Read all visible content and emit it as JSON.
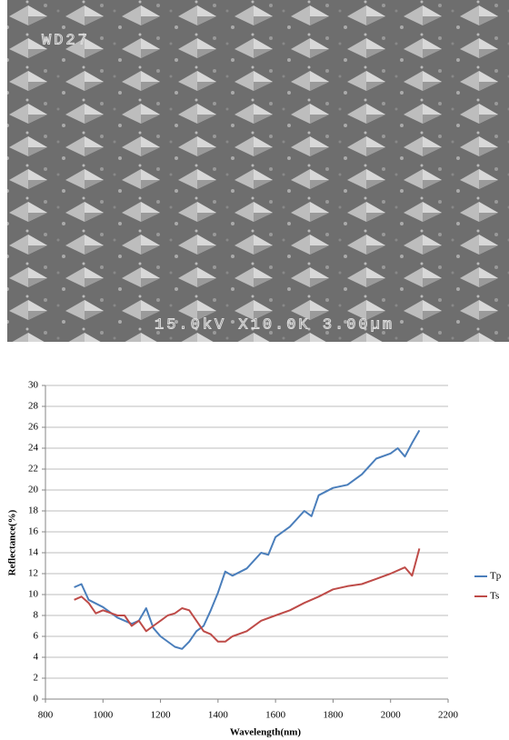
{
  "image": {
    "labels": [
      "WD27",
      "15.0kV X10.0K 3.00µm"
    ]
  },
  "chart_data": {
    "type": "line",
    "x_label": "Wavelength(nm)",
    "y_label": "Reflectance(%)",
    "xlim": [
      800,
      2200
    ],
    "xticks": [
      800,
      1000,
      1200,
      1400,
      1600,
      1800,
      2000,
      2200
    ],
    "ylim": [
      0,
      30
    ],
    "yticks": [
      0,
      2,
      4,
      6,
      8,
      10,
      12,
      14,
      16,
      18,
      20,
      22,
      24,
      26,
      28,
      30
    ],
    "grid": true,
    "legend": "right",
    "series": [
      {
        "name": "Tp",
        "color": "#4a7ebb",
        "x": [
          900,
          925,
          950,
          1000,
          1050,
          1100,
          1125,
          1150,
          1175,
          1200,
          1250,
          1275,
          1300,
          1325,
          1350,
          1375,
          1400,
          1425,
          1450,
          1500,
          1550,
          1575,
          1600,
          1650,
          1700,
          1725,
          1750,
          1800,
          1850,
          1900,
          1950,
          2000,
          2025,
          2050,
          2075,
          2100
        ],
        "values": [
          10.7,
          11.0,
          9.5,
          8.8,
          7.8,
          7.2,
          7.5,
          8.7,
          6.8,
          6.0,
          5.0,
          4.8,
          5.5,
          6.5,
          7.0,
          8.5,
          10.2,
          12.2,
          11.8,
          12.5,
          14.0,
          13.8,
          15.5,
          16.5,
          18.0,
          17.5,
          19.5,
          20.2,
          20.5,
          21.5,
          23.0,
          23.5,
          24.0,
          23.2,
          24.5,
          25.7
        ]
      },
      {
        "name": "Ts",
        "color": "#be4b48",
        "x": [
          900,
          925,
          950,
          975,
          1000,
          1050,
          1075,
          1100,
          1125,
          1150,
          1175,
          1200,
          1225,
          1250,
          1275,
          1300,
          1325,
          1350,
          1375,
          1400,
          1425,
          1450,
          1500,
          1550,
          1600,
          1650,
          1700,
          1750,
          1800,
          1850,
          1900,
          1950,
          2000,
          2050,
          2075,
          2100
        ],
        "values": [
          9.5,
          9.8,
          9.2,
          8.2,
          8.5,
          8.0,
          8.0,
          7.0,
          7.5,
          6.5,
          7.0,
          7.5,
          8.0,
          8.2,
          8.7,
          8.5,
          7.5,
          6.5,
          6.2,
          5.5,
          5.5,
          6.0,
          6.5,
          7.5,
          8.0,
          8.5,
          9.2,
          9.8,
          10.5,
          10.8,
          11.0,
          11.5,
          12.0,
          12.6,
          11.8,
          14.4
        ]
      }
    ]
  }
}
